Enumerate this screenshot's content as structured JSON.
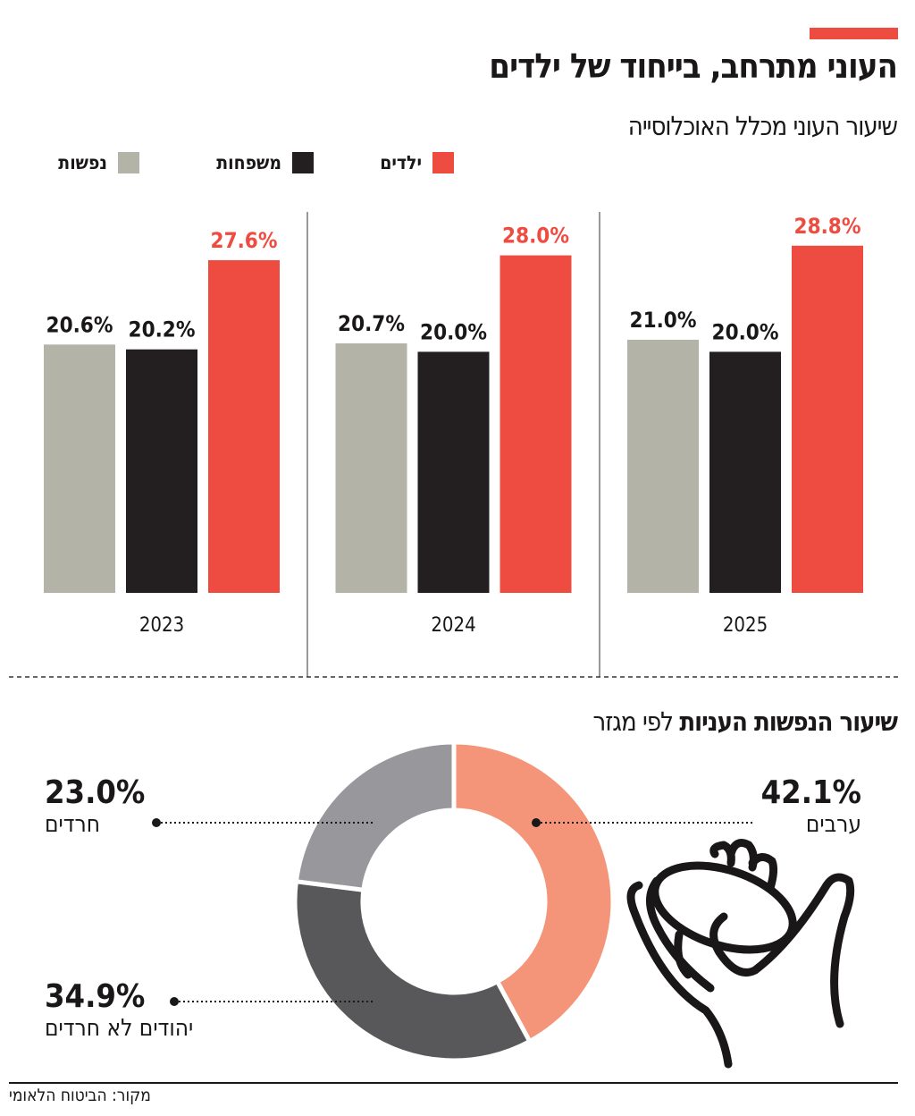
{
  "title": "העוני מתרחב, בייחוד של ילדים",
  "subtitle": "שיעור העוני מכלל האוכלוסייה",
  "colors": {
    "accent": "#ef4c41",
    "children": "#ef4c41",
    "families": "#231f20",
    "persons": "#b3b3a7",
    "arabs": "#f4957a",
    "jewish_non_haredi": "#58585a",
    "haredi": "#98989c"
  },
  "chart_data": [
    {
      "type": "bar",
      "title": "שיעור העוני מכלל האוכלוסייה",
      "categories": [
        "2023",
        "2024",
        "2025"
      ],
      "series": [
        {
          "name": "נפשות",
          "values": [
            20.6,
            20.7,
            21.0
          ],
          "labels": [
            "20.6%",
            "20.7%",
            "21.0%"
          ]
        },
        {
          "name": "משפחות",
          "values": [
            20.2,
            20.0,
            20.0
          ],
          "labels": [
            "20.2%",
            "20.0%",
            "20.0%"
          ]
        },
        {
          "name": "ילדים",
          "values": [
            27.6,
            28.0,
            28.8
          ],
          "labels": [
            "27.6%",
            "28.0%",
            "28.8%"
          ]
        }
      ],
      "legend": "top",
      "grid": false
    },
    {
      "type": "pie",
      "style": "donut",
      "title_bold": "שיעור הנפשות העניות",
      "title_rest": "לפי מגזר",
      "slices": [
        {
          "name": "ערבים",
          "value": 42.1,
          "label": "42.1%"
        },
        {
          "name": "יהודים לא חרדים",
          "value": 34.9,
          "label": "34.9%"
        },
        {
          "name": "חרדים",
          "value": 23.0,
          "label": "23.0%"
        }
      ]
    }
  ],
  "source": "מקור: הביטוח הלאומי",
  "icons": {
    "illustration": "hand-holding-coin-icon"
  }
}
